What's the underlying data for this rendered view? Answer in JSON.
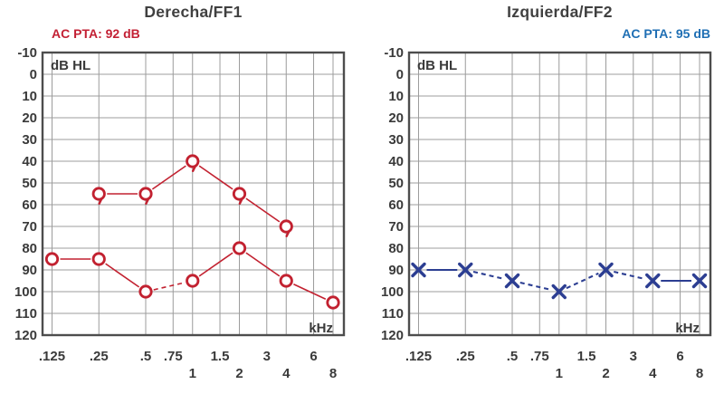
{
  "colors": {
    "background": "#ffffff",
    "grid": "#9c9c9c",
    "border": "#4d4d4d",
    "label": "#3a3a3a",
    "title": "#404040",
    "right_ear_red": "#c22130",
    "left_ear_blue": "#2c3e92",
    "pta_red": "#c32034",
    "pta_blue": "#1f6fb4"
  },
  "chart_data": [
    {
      "type": "line",
      "title": "Derecha/FF1",
      "annotation": "AC PTA: 92 dB",
      "annotation_color": "#c32034",
      "y_unit": "dB HL",
      "x_unit": "kHz",
      "x_scale": "log2",
      "ylim": [
        -10,
        120
      ],
      "y_ticks": [
        -10,
        0,
        10,
        20,
        30,
        40,
        50,
        60,
        70,
        80,
        90,
        100,
        110,
        120
      ],
      "x_ticks": [
        {
          "f": 0.125,
          "label": ".125",
          "row": 1
        },
        {
          "f": 0.25,
          "label": ".25",
          "row": 1
        },
        {
          "f": 0.5,
          "label": ".5",
          "row": 1
        },
        {
          "f": 0.75,
          "label": ".75",
          "row": 1
        },
        {
          "f": 1,
          "label": "1",
          "row": 2
        },
        {
          "f": 1.5,
          "label": "1.5",
          "row": 1
        },
        {
          "f": 2,
          "label": "2",
          "row": 2
        },
        {
          "f": 3,
          "label": "3",
          "row": 1
        },
        {
          "f": 4,
          "label": "4",
          "row": 2
        },
        {
          "f": 6,
          "label": "6",
          "row": 1
        },
        {
          "f": 8,
          "label": "8",
          "row": 2
        }
      ],
      "series": [
        {
          "name": "upper-circle-series",
          "marker": "circle-tail",
          "color": "#c22130",
          "line_width": 1.6,
          "dashed_segments": [],
          "points": [
            {
              "f": 0.25,
              "db": 55
            },
            {
              "f": 0.5,
              "db": 55
            },
            {
              "f": 1,
              "db": 40
            },
            {
              "f": 2,
              "db": 55
            },
            {
              "f": 4,
              "db": 70
            }
          ]
        },
        {
          "name": "air-conduction-circle-series",
          "marker": "circle",
          "color": "#c22130",
          "line_width": 1.6,
          "dashed_segments": [
            2
          ],
          "points": [
            {
              "f": 0.125,
              "db": 85
            },
            {
              "f": 0.25,
              "db": 85
            },
            {
              "f": 0.5,
              "db": 100
            },
            {
              "f": 1,
              "db": 95
            },
            {
              "f": 2,
              "db": 80
            },
            {
              "f": 4,
              "db": 95
            },
            {
              "f": 8,
              "db": 105
            }
          ]
        }
      ]
    },
    {
      "type": "line",
      "title": "Izquierda/FF2",
      "annotation": "AC PTA: 95 dB",
      "annotation_color": "#1f6fb4",
      "y_unit": "dB HL",
      "x_unit": "kHz",
      "x_scale": "log2",
      "ylim": [
        -10,
        120
      ],
      "y_ticks": [
        -10,
        0,
        10,
        20,
        30,
        40,
        50,
        60,
        70,
        80,
        90,
        100,
        110,
        120
      ],
      "x_ticks": [
        {
          "f": 0.125,
          "label": ".125",
          "row": 1
        },
        {
          "f": 0.25,
          "label": ".25",
          "row": 1
        },
        {
          "f": 0.5,
          "label": ".5",
          "row": 1
        },
        {
          "f": 0.75,
          "label": ".75",
          "row": 1
        },
        {
          "f": 1,
          "label": "1",
          "row": 2
        },
        {
          "f": 1.5,
          "label": "1.5",
          "row": 1
        },
        {
          "f": 2,
          "label": "2",
          "row": 2
        },
        {
          "f": 3,
          "label": "3",
          "row": 1
        },
        {
          "f": 4,
          "label": "4",
          "row": 2
        },
        {
          "f": 6,
          "label": "6",
          "row": 1
        },
        {
          "f": 8,
          "label": "8",
          "row": 2
        }
      ],
      "series": [
        {
          "name": "air-conduction-x-series",
          "marker": "x",
          "color": "#2c3e92",
          "line_width": 2.1,
          "dashed_segments": [
            1,
            2,
            3,
            4
          ],
          "points": [
            {
              "f": 0.125,
              "db": 90
            },
            {
              "f": 0.25,
              "db": 90
            },
            {
              "f": 0.5,
              "db": 95
            },
            {
              "f": 1,
              "db": 100
            },
            {
              "f": 2,
              "db": 90
            },
            {
              "f": 4,
              "db": 95
            },
            {
              "f": 8,
              "db": 95
            }
          ]
        }
      ]
    }
  ]
}
